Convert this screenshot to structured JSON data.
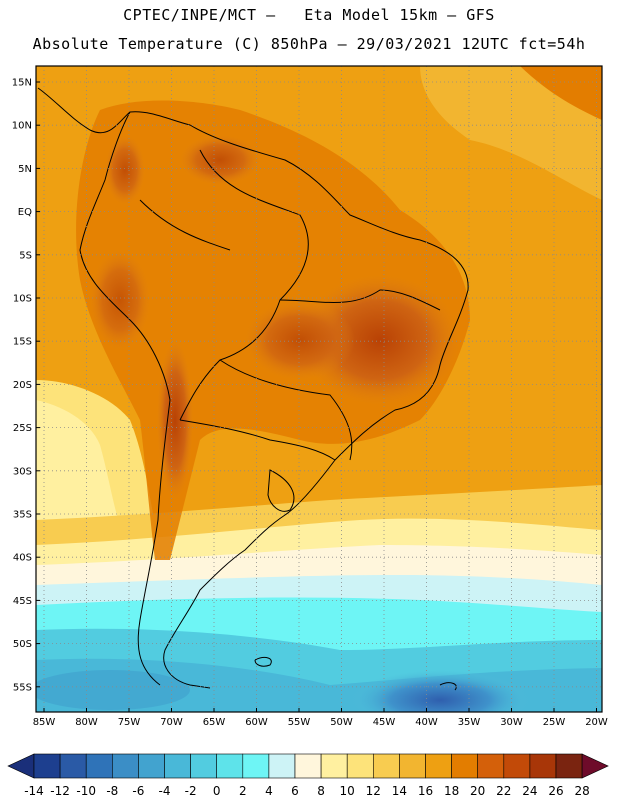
{
  "header": {
    "line1": "CPTEC/INPE/MCT –   Eta Model 15km – GFS",
    "line2": "Absolute Temperature (C) 850hPa – 29/03/2021 12UTC fct=54h"
  },
  "map": {
    "lat_labels": [
      "15N",
      "10N",
      "5N",
      "EQ",
      "5S",
      "10S",
      "15S",
      "20S",
      "25S",
      "30S",
      "35S",
      "40S",
      "45S",
      "50S",
      "55S"
    ],
    "lon_labels": [
      "85W",
      "80W",
      "75W",
      "70W",
      "65W",
      "60W",
      "55W",
      "50W",
      "45W",
      "40W",
      "35W",
      "30W",
      "25W",
      "20W"
    ]
  },
  "colorbar": {
    "labels": [
      "-14",
      "-12",
      "-10",
      "-8",
      "-6",
      "-4",
      "-2",
      "0",
      "2",
      "4",
      "6",
      "8",
      "10",
      "12",
      "14",
      "16",
      "18",
      "20",
      "22",
      "24",
      "26",
      "28"
    ],
    "colors": [
      "#1d3f8f",
      "#2a5aa6",
      "#2f73b8",
      "#3b8ec6",
      "#42a3cf",
      "#49b8d8",
      "#52cce0",
      "#5ee3ea",
      "#6ef5f5",
      "#cdf3f6",
      "#fff6dc",
      "#fff0a0",
      "#fde37a",
      "#f8cc50",
      "#f2b530",
      "#eea012",
      "#e37d00",
      "#d4600a",
      "#c24a08",
      "#a83608",
      "#7a2410"
    ],
    "min_color": "#1a2f7a",
    "max_color": "#6e0b2a"
  }
}
